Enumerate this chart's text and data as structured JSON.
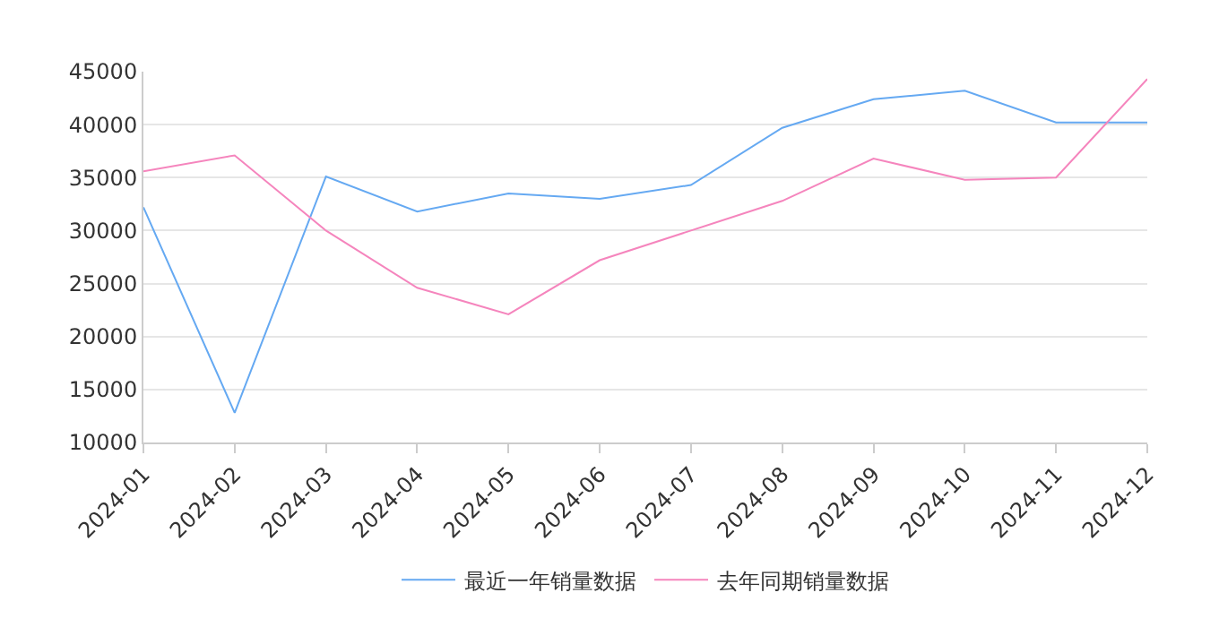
{
  "chart_data": {
    "type": "line",
    "categories": [
      "2024-01",
      "2024-02",
      "2024-03",
      "2024-04",
      "2024-05",
      "2024-06",
      "2024-07",
      "2024-08",
      "2024-09",
      "2024-10",
      "2024-11",
      "2024-12"
    ],
    "series": [
      {
        "name": "最近一年销量数据",
        "color": "#65a9f2",
        "values": [
          32200,
          12800,
          35100,
          31800,
          33500,
          33000,
          34300,
          39700,
          42400,
          43200,
          40200,
          40200
        ]
      },
      {
        "name": "去年同期销量数据",
        "color": "#f585bd",
        "values": [
          35600,
          37100,
          30000,
          24600,
          22100,
          27200,
          30000,
          32800,
          36800,
          34800,
          35000,
          44300
        ]
      }
    ],
    "ylim": [
      10000,
      45000
    ],
    "yticks": [
      10000,
      15000,
      20000,
      25000,
      30000,
      35000,
      40000,
      45000
    ],
    "grid": "y",
    "legend": "bottom",
    "marker": "none",
    "line_style": "solid"
  }
}
